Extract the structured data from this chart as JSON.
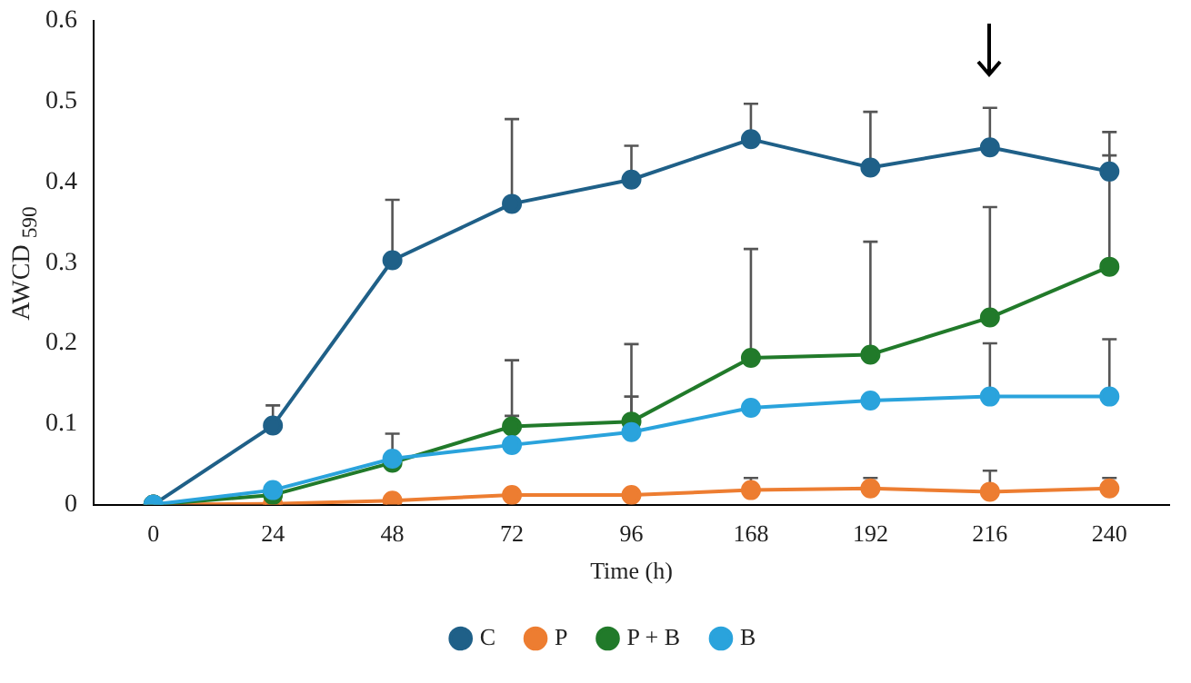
{
  "chart_data": {
    "type": "line",
    "xlabel": "Time (h)",
    "ylabel": "AWCD $_{590}$",
    "categories": [
      "0",
      "24",
      "48",
      "72",
      "96",
      "168",
      "192",
      "216",
      "240"
    ],
    "ylim": [
      0,
      0.6
    ],
    "yticks": [
      0,
      0.1,
      0.2,
      0.3,
      0.4,
      0.5,
      0.6
    ],
    "grid": false,
    "legend": "bottom",
    "marker": "circle",
    "line_style": "solid",
    "series": [
      {
        "name": "C",
        "color": "#1f6088",
        "values": [
          0,
          0.098,
          0.303,
          0.373,
          0.403,
          0.453,
          0.418,
          0.443,
          0.413
        ],
        "errors": [
          null,
          [
            0.098,
            0.123
          ],
          [
            0.303,
            0.378
          ],
          [
            0.373,
            0.478
          ],
          [
            0.403,
            0.445
          ],
          [
            0.453,
            0.497
          ],
          [
            0.418,
            0.487
          ],
          [
            0.443,
            0.492
          ],
          [
            0.413,
            0.462
          ]
        ]
      },
      {
        "name": "P",
        "color": "#ed7d31",
        "values": [
          0,
          0.001,
          0.005,
          0.012,
          0.012,
          0.018,
          0.02,
          0.016,
          0.02
        ],
        "errors": [
          null,
          null,
          null,
          null,
          null,
          [
            0.018,
            0.033
          ],
          [
            0.02,
            0.033
          ],
          [
            0.016,
            0.042
          ],
          [
            0.02,
            0.033
          ]
        ]
      },
      {
        "name": "P + B",
        "color": "#217a2a",
        "values": [
          0,
          0.012,
          0.052,
          0.097,
          0.103,
          0.182,
          0.186,
          0.232,
          0.295
        ],
        "errors": [
          null,
          null,
          null,
          [
            0.097,
            0.179
          ],
          [
            0.103,
            0.199
          ],
          [
            0.182,
            0.317
          ],
          [
            0.186,
            0.326
          ],
          [
            0.232,
            0.369
          ],
          [
            0.295,
            0.433
          ]
        ]
      },
      {
        "name": "B",
        "color": "#2aa3dc",
        "values": [
          0,
          0.018,
          0.057,
          0.074,
          0.09,
          0.12,
          0.129,
          0.134,
          0.134
        ],
        "errors": [
          null,
          null,
          [
            0.057,
            0.088
          ],
          [
            0.074,
            0.11
          ],
          [
            0.09,
            0.134
          ],
          null,
          null,
          [
            0.134,
            0.2
          ],
          [
            0.134,
            0.205
          ]
        ]
      }
    ]
  }
}
